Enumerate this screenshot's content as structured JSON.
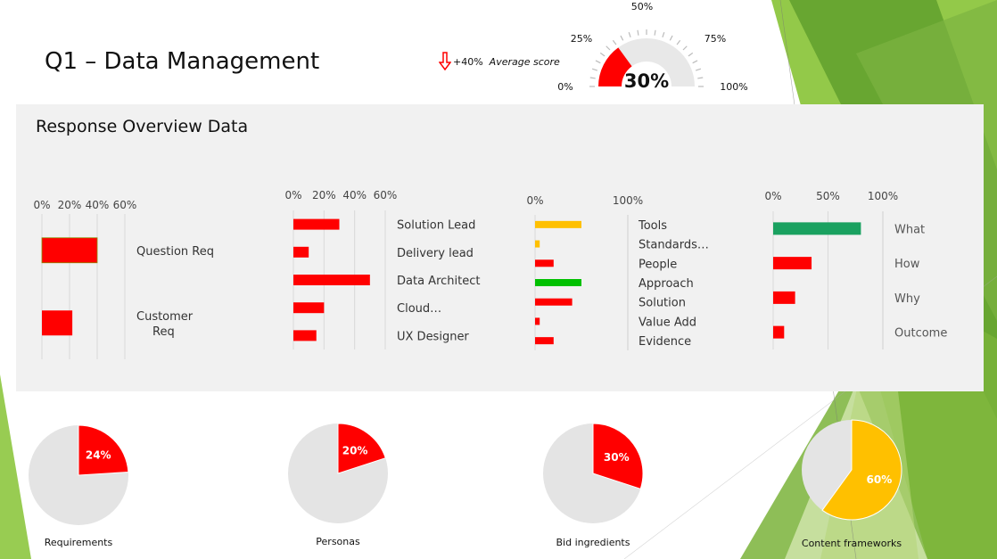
{
  "header": {
    "title": "Q1 – Data Management",
    "delta_value": "+40%",
    "delta_label": "Average score"
  },
  "gauge": {
    "value": 30,
    "value_label": "30%",
    "tick_labels": [
      "0%",
      "25%",
      "50%",
      "75%",
      "100%"
    ],
    "color_fill": "#ff0000",
    "color_track": "#e8e8e8"
  },
  "panel": {
    "title": "Response Overview Data"
  },
  "colors": {
    "red": "#ff0000",
    "amber": "#ffc000",
    "green": "#00c000",
    "teal": "#1aa160",
    "grey": "#e4e4e4",
    "bg_green": "#8dc63f"
  },
  "chart_data": [
    {
      "type": "bar",
      "orientation": "horizontal",
      "categories": [
        "Question Req",
        "Customer Req"
      ],
      "category_lines": [
        [
          "Question Req"
        ],
        [
          "Customer",
          "Req"
        ]
      ],
      "values": [
        40,
        22
      ],
      "xlim": [
        0,
        60
      ],
      "tick_labels": [
        "0%",
        "20%",
        "40%",
        "60%"
      ],
      "grid": true,
      "bar_colors": [
        "#ff0000",
        "#ff0000"
      ]
    },
    {
      "type": "bar",
      "orientation": "horizontal",
      "categories": [
        "Solution Lead",
        "Delivery lead",
        "Data Architect",
        "Cloud…",
        "UX Designer"
      ],
      "values": [
        30,
        10,
        50,
        20,
        15
      ],
      "xlim": [
        0,
        60
      ],
      "tick_labels": [
        "0%",
        "20%",
        "40%",
        "60%"
      ],
      "grid": true,
      "bar_colors": [
        "#ff0000",
        "#ff0000",
        "#ff0000",
        "#ff0000",
        "#ff0000"
      ]
    },
    {
      "type": "bar",
      "orientation": "horizontal",
      "categories": [
        "Tools",
        "Standards…",
        "People",
        "Approach",
        "Solution",
        "Value Add",
        "Evidence"
      ],
      "values": [
        50,
        5,
        20,
        50,
        40,
        5,
        20
      ],
      "xlim": [
        0,
        100
      ],
      "tick_labels": [
        "0%",
        "100%"
      ],
      "grid": false,
      "bar_colors": [
        "#ffc000",
        "#ffc000",
        "#ff0000",
        "#00c000",
        "#ff0000",
        "#ff0000",
        "#ff0000"
      ]
    },
    {
      "type": "bar",
      "orientation": "horizontal",
      "categories": [
        "What",
        "How",
        "Why",
        "Outcome"
      ],
      "values": [
        80,
        35,
        20,
        10
      ],
      "xlim": [
        0,
        100
      ],
      "tick_labels": [
        "0%",
        "50%",
        "100%"
      ],
      "grid": true,
      "bar_colors": [
        "#1aa160",
        "#ff0000",
        "#ff0000",
        "#ff0000"
      ]
    },
    {
      "type": "pie",
      "caption": "Requirements",
      "value": 24,
      "value_label": "24%",
      "highlight_color": "#ff0000"
    },
    {
      "type": "pie",
      "caption": "Personas",
      "value": 20,
      "value_label": "20%",
      "highlight_color": "#ff0000"
    },
    {
      "type": "pie",
      "caption": "Bid ingredients",
      "value": 30,
      "value_label": "30%",
      "highlight_color": "#ff0000"
    },
    {
      "type": "pie",
      "caption": "Content frameworks",
      "value": 60,
      "value_label": "60%",
      "highlight_color": "#ffc000"
    }
  ]
}
